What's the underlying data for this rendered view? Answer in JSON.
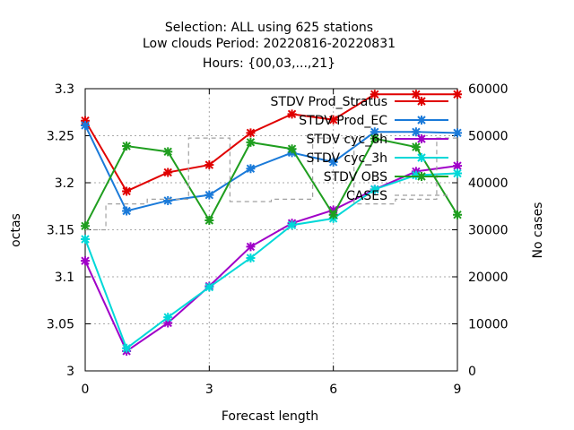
{
  "chart_data": {
    "type": "line",
    "title_lines": [
      "Selection: ALL using   625 stations",
      "Low clouds   Period: 20220816-20220831",
      "Hours: {00,03,...,21}"
    ],
    "xlabel": "Forecast length",
    "ylabel": "octas",
    "y2label": "No cases",
    "xlim": [
      0,
      9
    ],
    "ylim": [
      3.0,
      3.3
    ],
    "y2lim": [
      0,
      60000
    ],
    "xticks": [
      "0",
      "3",
      "6",
      "9"
    ],
    "yticks": [
      "3",
      "3.05",
      "3.1",
      "3.15",
      "3.2",
      "3.25",
      "3.3"
    ],
    "y2ticks": [
      "0",
      "10000",
      "20000",
      "30000",
      "40000",
      "50000",
      "60000"
    ],
    "grid": true,
    "legend_position": "top-right",
    "x": [
      0,
      1,
      2,
      3,
      4,
      5,
      6,
      7,
      8,
      9
    ],
    "series": [
      {
        "name": "STDV Prod_Stratus",
        "color": "#e00000",
        "axis": "y",
        "values": [
          3.266,
          3.191,
          3.211,
          3.219,
          3.253,
          3.273,
          3.267,
          3.294,
          3.294,
          3.294
        ]
      },
      {
        "name": "STDV Prod_EC",
        "color": "#1a7ad9",
        "axis": "y",
        "values": [
          3.261,
          3.17,
          3.181,
          3.187,
          3.215,
          3.232,
          3.222,
          3.254,
          3.254,
          3.253
        ]
      },
      {
        "name": "STDV cyc_6h",
        "color": "#a000c8",
        "axis": "y",
        "values": [
          3.117,
          3.021,
          3.051,
          3.09,
          3.132,
          3.157,
          3.171,
          3.193,
          3.212,
          3.218
        ]
      },
      {
        "name": "STDV cyc_3h",
        "color": "#00d8d8",
        "axis": "y",
        "values": [
          3.14,
          3.024,
          3.057,
          3.089,
          3.12,
          3.155,
          3.162,
          3.193,
          3.208,
          3.21
        ]
      },
      {
        "name": "STDV OBS",
        "color": "#1f9e1f",
        "axis": "y",
        "values": [
          3.154,
          3.239,
          3.233,
          3.16,
          3.243,
          3.236,
          3.166,
          3.247,
          3.238,
          3.166
        ]
      },
      {
        "name": "CASES",
        "color": "#a0a0a0",
        "axis": "y2",
        "dashed": true,
        "values": [
          30000,
          35500,
          36500,
          49500,
          36000,
          36500,
          49500,
          35500,
          36500,
          49500
        ]
      }
    ]
  }
}
